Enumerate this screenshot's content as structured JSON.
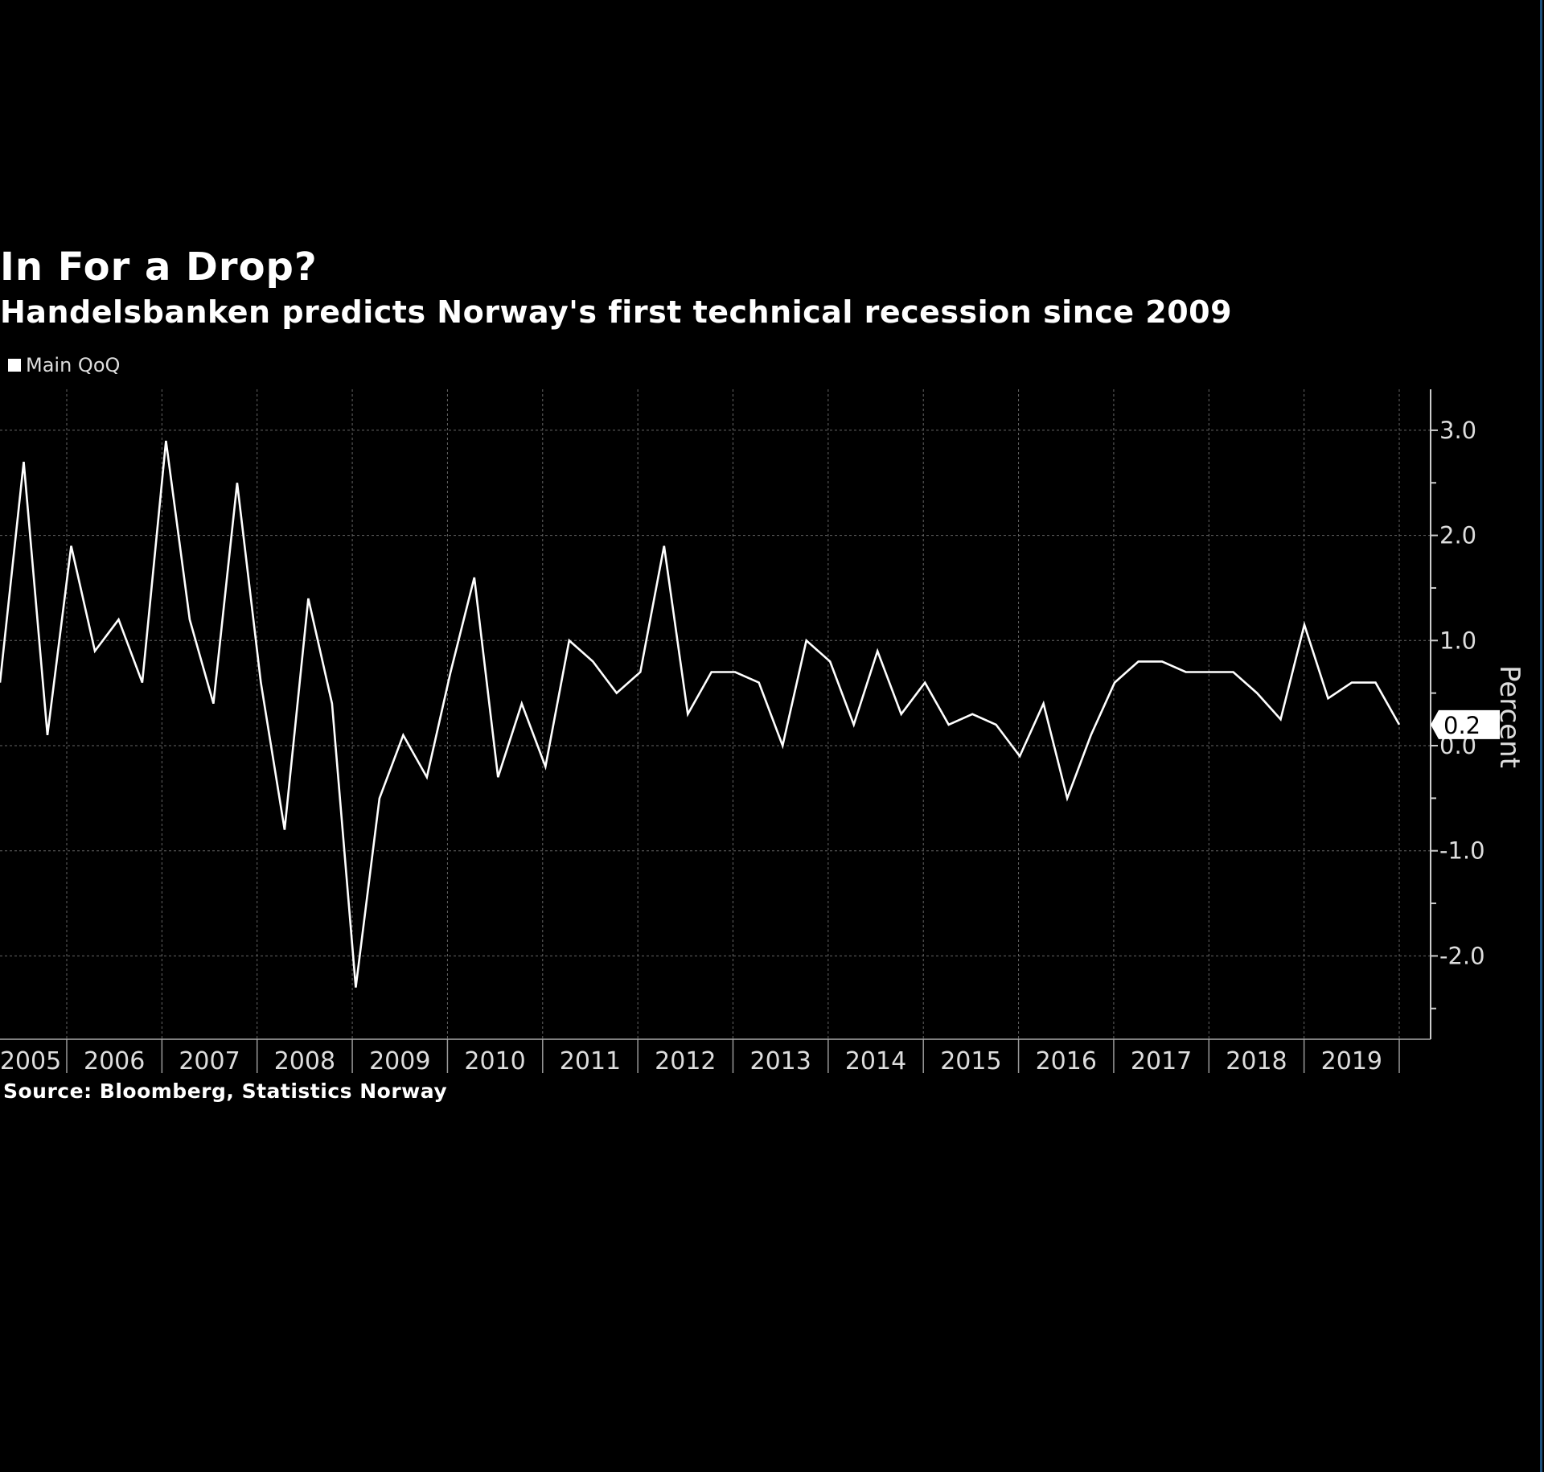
{
  "title": "In For a Drop?",
  "subtitle": "Handelsbanken predicts Norway's first technical recession since 2009",
  "source": "Source: Bloomberg, Statistics Norway",
  "chart_data": {
    "type": "line",
    "title": "In For a Drop?",
    "subtitle": "Handelsbanken predicts Norway's first technical recession since 2009",
    "ylabel": "Percent",
    "xlabel": "",
    "ylim": [
      -2.6,
      3.4
    ],
    "yticks": [
      "3.0",
      "2.0",
      "1.0",
      "0.0",
      "-1.0",
      "-2.0"
    ],
    "ytick_values": [
      3,
      2,
      1,
      0,
      -1,
      -2
    ],
    "xtick_labels": [
      "2005",
      "2006",
      "2007",
      "2008",
      "2009",
      "2010",
      "2011",
      "2012",
      "2013",
      "2014",
      "2015",
      "2016",
      "2017",
      "2018",
      "2019"
    ],
    "grid": true,
    "legend_position": "top-left",
    "line_color": "#ffffff",
    "last_value_label": "0.2",
    "series": [
      {
        "name": "Main QoQ",
        "values": [
          0.6,
          2.7,
          0.1,
          1.9,
          0.9,
          1.2,
          0.6,
          2.9,
          1.2,
          0.4,
          2.5,
          0.6,
          -0.8,
          1.4,
          0.4,
          -2.3,
          -0.5,
          0.1,
          -0.3,
          0.7,
          1.6,
          -0.3,
          0.4,
          -0.2,
          1.0,
          0.8,
          0.5,
          0.7,
          1.9,
          0.3,
          0.7,
          0.7,
          0.6,
          0.0,
          1.0,
          0.8,
          0.2,
          0.9,
          0.3,
          0.6,
          0.2,
          0.3,
          0.2,
          -0.1,
          0.4,
          -0.5,
          0.1,
          0.6,
          0.8,
          0.8,
          0.7,
          0.7,
          0.7,
          0.5,
          0.25,
          1.15,
          0.45,
          0.6,
          0.6,
          0.2
        ]
      }
    ]
  }
}
